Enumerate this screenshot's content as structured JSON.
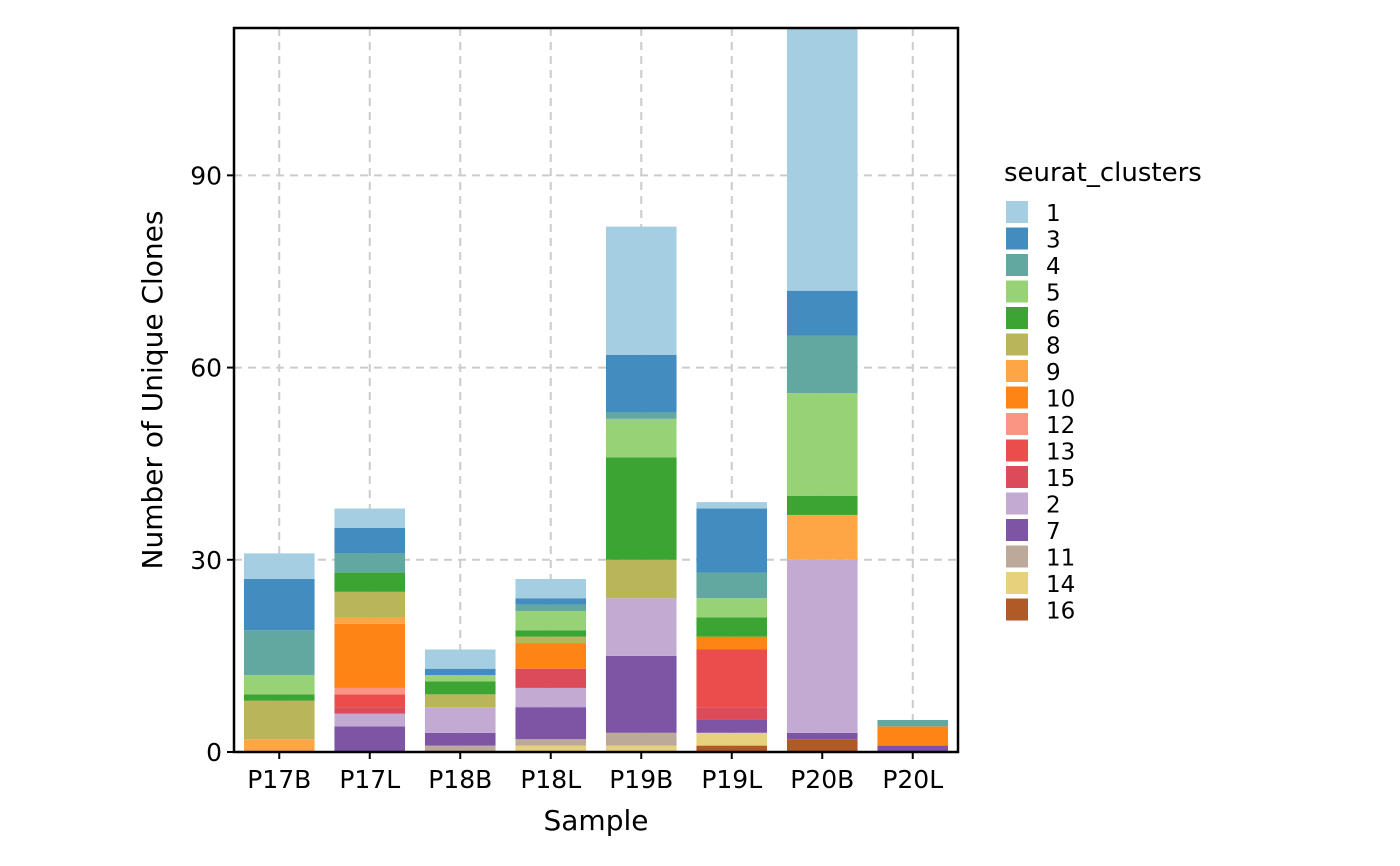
{
  "chart_data": {
    "type": "bar",
    "stacked": true,
    "xlabel": "Sample",
    "ylabel": "Number of Unique Clones",
    "categories": [
      "P17B",
      "P17L",
      "P18B",
      "P18L",
      "P19B",
      "P19L",
      "P20B",
      "P20L"
    ],
    "ylim": [
      0,
      113
    ],
    "yticks": [
      0,
      30,
      60,
      90
    ],
    "grid": true,
    "legend": {
      "title": "seurat_clusters",
      "position": "right"
    },
    "stack_order_bottom_to_top": [
      "16",
      "14",
      "11",
      "7",
      "2",
      "15",
      "13",
      "12",
      "10",
      "9",
      "8",
      "6",
      "5",
      "4",
      "3",
      "1"
    ],
    "series": [
      {
        "name": "1",
        "color": "#a6cee3",
        "values": [
          4,
          3,
          3,
          3,
          20,
          1,
          41,
          0
        ]
      },
      {
        "name": "3",
        "color": "#438cc0",
        "values": [
          8,
          4,
          1,
          1,
          9,
          10,
          7,
          0
        ]
      },
      {
        "name": "4",
        "color": "#62a8a0",
        "values": [
          7,
          3,
          0,
          1,
          1,
          4,
          9,
          1
        ]
      },
      {
        "name": "5",
        "color": "#98d277",
        "values": [
          3,
          0,
          1,
          3,
          6,
          3,
          16,
          0
        ]
      },
      {
        "name": "6",
        "color": "#3ba432",
        "values": [
          1,
          3,
          2,
          1,
          16,
          3,
          3,
          0
        ]
      },
      {
        "name": "8",
        "color": "#b9b55a",
        "values": [
          6,
          4,
          2,
          1,
          6,
          0,
          0,
          0
        ]
      },
      {
        "name": "9",
        "color": "#fea546",
        "values": [
          2,
          1,
          0,
          0,
          0,
          0,
          7,
          0
        ]
      },
      {
        "name": "10",
        "color": "#fe8416",
        "values": [
          0,
          10,
          0,
          4,
          0,
          2,
          0,
          3
        ]
      },
      {
        "name": "12",
        "color": "#f99582",
        "values": [
          0,
          1,
          0,
          0,
          0,
          0,
          0,
          0
        ]
      },
      {
        "name": "13",
        "color": "#eb4c4c",
        "values": [
          0,
          2,
          0,
          0,
          0,
          9,
          0,
          0
        ]
      },
      {
        "name": "15",
        "color": "#db4b59",
        "values": [
          0,
          1,
          0,
          3,
          0,
          2,
          0,
          0
        ]
      },
      {
        "name": "2",
        "color": "#c3aad3",
        "values": [
          0,
          2,
          4,
          3,
          9,
          0,
          27,
          0
        ]
      },
      {
        "name": "7",
        "color": "#7e54a5",
        "values": [
          0,
          4,
          2,
          5,
          12,
          2,
          1,
          1
        ]
      },
      {
        "name": "11",
        "color": "#bca99a",
        "values": [
          0,
          0,
          1,
          1,
          2,
          0,
          0,
          0
        ]
      },
      {
        "name": "14",
        "color": "#e8d17d",
        "values": [
          0,
          0,
          0,
          1,
          1,
          2,
          0,
          0
        ]
      },
      {
        "name": "16",
        "color": "#b05a28",
        "values": [
          0,
          0,
          0,
          0,
          0,
          1,
          2,
          0
        ]
      }
    ]
  }
}
